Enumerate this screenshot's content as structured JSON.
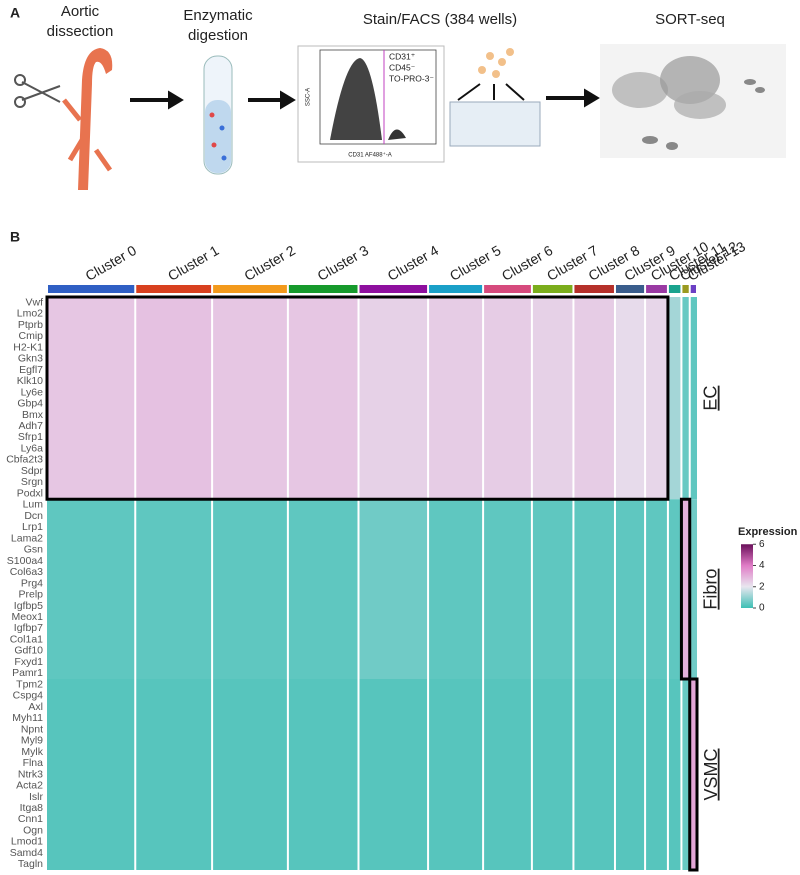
{
  "panel_a": {
    "label": "A",
    "steps": [
      "Aortic\ndissection",
      "Enzymatic\ndigestion",
      "Stain/FACS (384 wells)",
      "SORT-seq"
    ],
    "facs": {
      "gate_labels": [
        "CD31⁺",
        "CD45⁻",
        "TO-PRO-3⁻"
      ],
      "x_label": "CD31 AF488⁺-A",
      "y_label": "SSC-A"
    }
  },
  "panel_b": {
    "label": "B",
    "type": "heatmap",
    "clusters": [
      "Cluster 0",
      "Cluster 1",
      "Cluster 2",
      "Cluster 3",
      "Cluster 4",
      "Cluster 5",
      "Cluster 6",
      "Cluster 7",
      "Cluster 8",
      "Cluster 9",
      "Cluster 10",
      "Cluster 11",
      "Cluster 12",
      "Cluster 13"
    ],
    "cluster_colors": [
      "#2f5fc4",
      "#d8401f",
      "#f39a1c",
      "#169a2c",
      "#8e0f9e",
      "#1aa0c8",
      "#d64a7d",
      "#7bad1c",
      "#b5302a",
      "#3a5d8c",
      "#9a3aa3",
      "#1aa38e",
      "#9a9a20",
      "#6b3fc4"
    ],
    "cell_counts": [
      85,
      74,
      73,
      68,
      67,
      53,
      47,
      40,
      40,
      29,
      22,
      13,
      8,
      7
    ],
    "groups": [
      {
        "name": "EC",
        "genes": [
          "Vwf",
          "Lmo2",
          "Ptprb",
          "Cmip",
          "H2-K1",
          "Gkn3",
          "Egfl7",
          "Klk10",
          "Ly6e",
          "Gbp4",
          "Bmx",
          "Adh7",
          "Sfrp1",
          "Ly6a",
          "Cbfa2t3",
          "Sdpr",
          "Srgn",
          "Podxl"
        ],
        "values": [
          2.6,
          2.7,
          2.6,
          2.6,
          2.4,
          2.5,
          2.5,
          2.4,
          2.5,
          2.2,
          2.3,
          1.2,
          0.5,
          0.4
        ]
      },
      {
        "name": "Fibro",
        "genes": [
          "Lum",
          "Dcn",
          "Lrp1",
          "Lama2",
          "Gsn",
          "S100a4",
          "Col6a3",
          "Prg4",
          "Prelp",
          "Igfbp5",
          "Meox1",
          "Igfbp7",
          "Col1a1",
          "Gdf10",
          "Fxyd1",
          "Pamr1"
        ],
        "values": [
          0.4,
          0.4,
          0.4,
          0.4,
          0.6,
          0.4,
          0.4,
          0.4,
          0.4,
          0.4,
          0.4,
          0.4,
          3.0,
          0.6
        ]
      },
      {
        "name": "VSMC",
        "genes": [
          "Tpm2",
          "Cspg4",
          "Axl",
          "Myh11",
          "Npnt",
          "Myl9",
          "Mylk",
          "Flna",
          "Ntrk3",
          "Acta2",
          "Islr",
          "Itga8",
          "Cnn1",
          "Ogn",
          "Lmod1",
          "Samd4",
          "Tagln"
        ],
        "values": [
          0.3,
          0.3,
          0.3,
          0.3,
          0.3,
          0.3,
          0.3,
          0.3,
          0.3,
          0.3,
          0.3,
          0.3,
          0.5,
          3.2
        ]
      }
    ],
    "legend": {
      "title": "Expression",
      "lim": [
        0,
        6.4
      ],
      "ticks": [
        0,
        2,
        4,
        6
      ],
      "colors": [
        "#3dbfb4",
        "#e8e6ef",
        "#e07cc6",
        "#6a0f5a"
      ]
    }
  }
}
